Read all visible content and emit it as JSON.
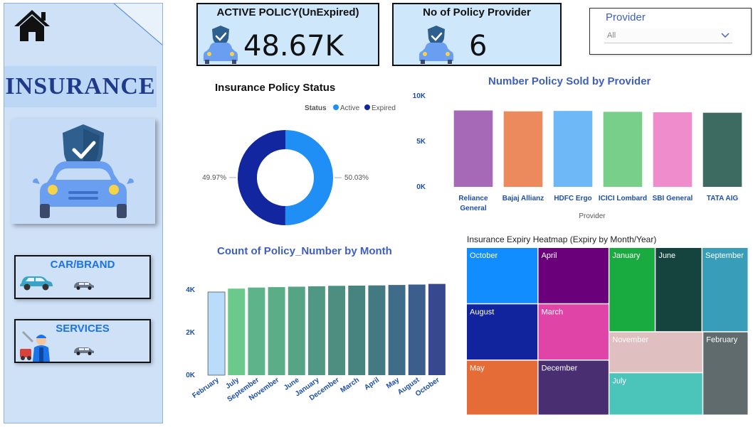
{
  "sidebar": {
    "title": "INSURANCE",
    "nav": [
      {
        "label": "CAR/BRAND"
      },
      {
        "label": "SERVICES"
      }
    ]
  },
  "kpis": [
    {
      "title": "ACTIVE POLICY(UnExpired)",
      "value": "48.67K"
    },
    {
      "title": "No of Policy Provider",
      "value": "6"
    }
  ],
  "slicer": {
    "label": "Provider",
    "selected": "All"
  },
  "colors": {
    "sidebar": "#cfe1f7",
    "accent_title": "#3f5fbf",
    "kpi_bg": "#cfe7fb"
  },
  "chart_data": [
    {
      "type": "pie",
      "title": "Insurance Policy Status",
      "legend_title": "Status",
      "legend_position": "top-right",
      "labels": [
        "Active",
        "Expired"
      ],
      "values": [
        50.03,
        49.97
      ],
      "value_labels": [
        "50.03%",
        "49.97%"
      ],
      "colors": [
        "#1f8ff5",
        "#1226a0"
      ]
    },
    {
      "type": "bar",
      "title": "Number Policy Sold by Provider",
      "xlabel": "Provider",
      "ylabel": "",
      "categories": [
        "Reliance General",
        "Bajaj Allianz",
        "HDFC Ergo",
        "ICICI Lombard",
        "SBI General",
        "TATA AIG"
      ],
      "values": [
        8400,
        8300,
        8350,
        8250,
        8200,
        8150
      ],
      "ylim": [
        0,
        10000
      ],
      "yticks": [
        "0K",
        "5K",
        "10K"
      ],
      "colors": [
        "#a569b8",
        "#ec8a5e",
        "#6fb8f8",
        "#78cf8a",
        "#ef8dcc",
        "#3d6b62"
      ]
    },
    {
      "type": "bar",
      "title": "Count of Policy_Number by Month",
      "xlabel": "",
      "ylabel": "",
      "categories": [
        "February",
        "July",
        "September",
        "November",
        "June",
        "January",
        "December",
        "March",
        "April",
        "May",
        "August",
        "October"
      ],
      "values": [
        3900,
        4060,
        4110,
        4130,
        4150,
        4170,
        4190,
        4200,
        4210,
        4230,
        4250,
        4280
      ],
      "ylim": [
        0,
        4600
      ],
      "yticks": [
        "0K",
        "2K",
        "4K"
      ],
      "colors": [
        "#b9dcfa",
        "#6cc98c",
        "#5db38a",
        "#5aad87",
        "#56a385",
        "#509883",
        "#4c8e80",
        "#48847f",
        "#437a82",
        "#3f6c88",
        "#3b5e8c",
        "#37488f"
      ]
    },
    {
      "type": "heatmap",
      "title": "Insurance Expiry Heatmap (Expiry by Month/Year)",
      "cells": [
        {
          "label": "October",
          "color": "#118dff"
        },
        {
          "label": "August",
          "color": "#12239e"
        },
        {
          "label": "May",
          "color": "#e66c37"
        },
        {
          "label": "April",
          "color": "#6b007b"
        },
        {
          "label": "March",
          "color": "#e044a7"
        },
        {
          "label": "December",
          "color": "#4a2e72"
        },
        {
          "label": "January",
          "color": "#1aab40"
        },
        {
          "label": "June",
          "color": "#15443e"
        },
        {
          "label": "September",
          "color": "#389db9"
        },
        {
          "label": "November",
          "color": "#dfbfbf"
        },
        {
          "label": "July",
          "color": "#4bc4ba"
        },
        {
          "label": "February",
          "color": "#5f6b6d"
        }
      ]
    }
  ]
}
